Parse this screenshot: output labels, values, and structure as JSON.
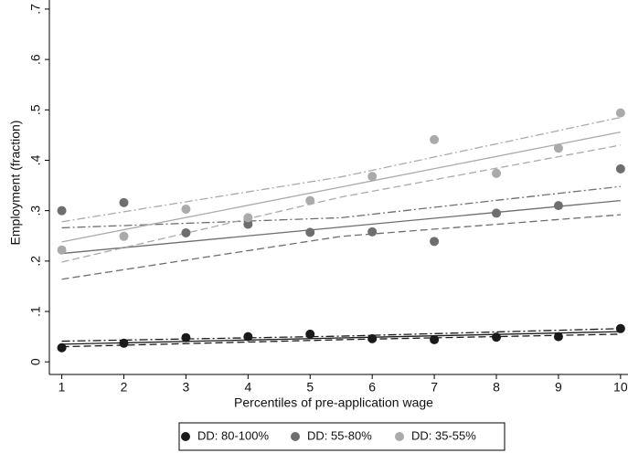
{
  "chart_data": {
    "type": "scatter",
    "x_label": "Percentiles of pre-application wage",
    "y_label": "Employment (fraction)",
    "xlim": [
      0.8,
      10.12
    ],
    "ylim": [
      -0.025,
      0.718
    ],
    "xticks": [
      1,
      2,
      3,
      4,
      5,
      6,
      7,
      8,
      9,
      10
    ],
    "yticks": [
      0,
      {
        "value": 0.1,
        "label": ".1"
      },
      {
        "value": 0.2,
        "label": ".2"
      },
      {
        "value": 0.3,
        "label": ".3"
      },
      {
        "value": 0.4,
        "label": ".4"
      },
      {
        "value": 0.5,
        "label": ".5"
      },
      {
        "value": 0.6,
        "label": ".6"
      },
      {
        "value": 0.7,
        "label": ".7"
      }
    ],
    "x": [
      1,
      2,
      3,
      4,
      5,
      6,
      7,
      8,
      9,
      10
    ],
    "fit_x": [
      1,
      5.5,
      10
    ],
    "series": [
      {
        "name": "DD: 80-100%",
        "color": "#1a1a1a",
        "values": [
          0.028,
          0.037,
          0.048,
          0.05,
          0.055,
          0.046,
          0.044,
          0.049,
          0.05,
          0.066
        ],
        "fit": [
          0.035,
          0.0475,
          0.06
        ],
        "lower": [
          0.03,
          0.044,
          0.055
        ],
        "upper": [
          0.041,
          0.051,
          0.066
        ]
      },
      {
        "name": "DD: 55-80%",
        "color": "#6e6e6e",
        "values": [
          0.3,
          0.316,
          0.256,
          0.273,
          0.257,
          0.258,
          0.239,
          0.295,
          0.31,
          0.383
        ],
        "fit": [
          0.215,
          0.2675,
          0.32
        ],
        "lower": [
          0.164,
          0.249,
          0.292
        ],
        "upper": [
          0.266,
          0.286,
          0.348
        ]
      },
      {
        "name": "DD: 35-55%",
        "color": "#aaaaaa",
        "values": [
          0.222,
          0.249,
          0.303,
          0.286,
          0.32,
          0.368,
          0.441,
          0.374,
          0.424,
          0.494
        ],
        "fit": [
          0.238,
          0.347,
          0.456
        ],
        "lower": [
          0.198,
          0.327,
          0.43
        ],
        "upper": [
          0.278,
          0.367,
          0.485
        ]
      }
    ]
  }
}
